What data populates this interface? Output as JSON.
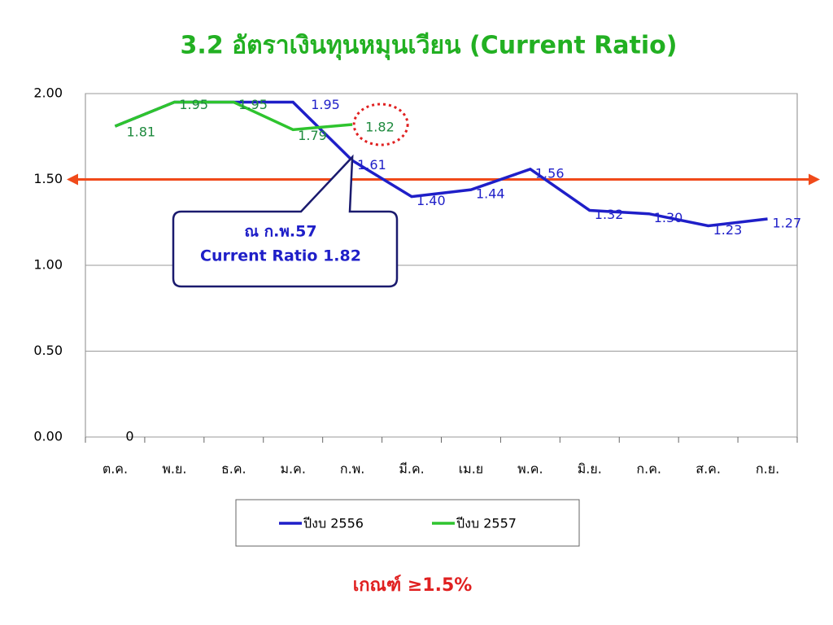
{
  "chart_data": {
    "type": "line",
    "title": "3.2 อัตราเงินทุนหมุนเวียน (Current Ratio)",
    "categories": [
      "ต.ค.",
      "พ.ย.",
      "ธ.ค.",
      "ม.ค.",
      "ก.พ.",
      "มี.ค.",
      "เม.ย",
      "พ.ค.",
      "มิ.ย.",
      "ก.ค.",
      "ส.ค.",
      "ก.ย."
    ],
    "series": [
      {
        "name": "ปีงบ 2556",
        "color": "#1f1fc8",
        "values": [
          1.81,
          1.95,
          1.95,
          1.95,
          1.61,
          1.4,
          1.44,
          1.56,
          1.32,
          1.3,
          1.23,
          1.27
        ],
        "value_labels": [
          null,
          null,
          null,
          "1.95",
          "1.61",
          "1.40",
          "1.44",
          "1.56",
          "1.32",
          "1.30",
          "1.23",
          "1.27"
        ]
      },
      {
        "name": "ปีงบ 2557",
        "color": "#2ec42e",
        "values": [
          1.81,
          1.95,
          1.95,
          1.79,
          1.82,
          null,
          null,
          null,
          null,
          null,
          null,
          null
        ],
        "value_labels": [
          "1.81",
          "1.95",
          "1.95",
          "1.79",
          "1.82",
          null,
          null,
          null,
          null,
          null,
          null,
          null
        ]
      }
    ],
    "ylim": [
      0,
      2
    ],
    "yticks": [
      {
        "value": 0,
        "label": "0.00"
      },
      {
        "value": 0.5,
        "label": "0.50"
      },
      {
        "value": 1,
        "label": "1.00"
      },
      {
        "value": 1.5,
        "label": "1.50"
      },
      {
        "value": 2,
        "label": "2.00"
      }
    ],
    "grid": true,
    "threshold": {
      "value": 1.5,
      "color": "#f04a1a"
    },
    "annotations": [
      "0"
    ],
    "callout": {
      "lines": [
        "ณ ก.พ.57",
        "Current Ratio 1.82"
      ]
    },
    "footer": "เกณฑ์ ≥1.5%",
    "legend": "bottom"
  }
}
